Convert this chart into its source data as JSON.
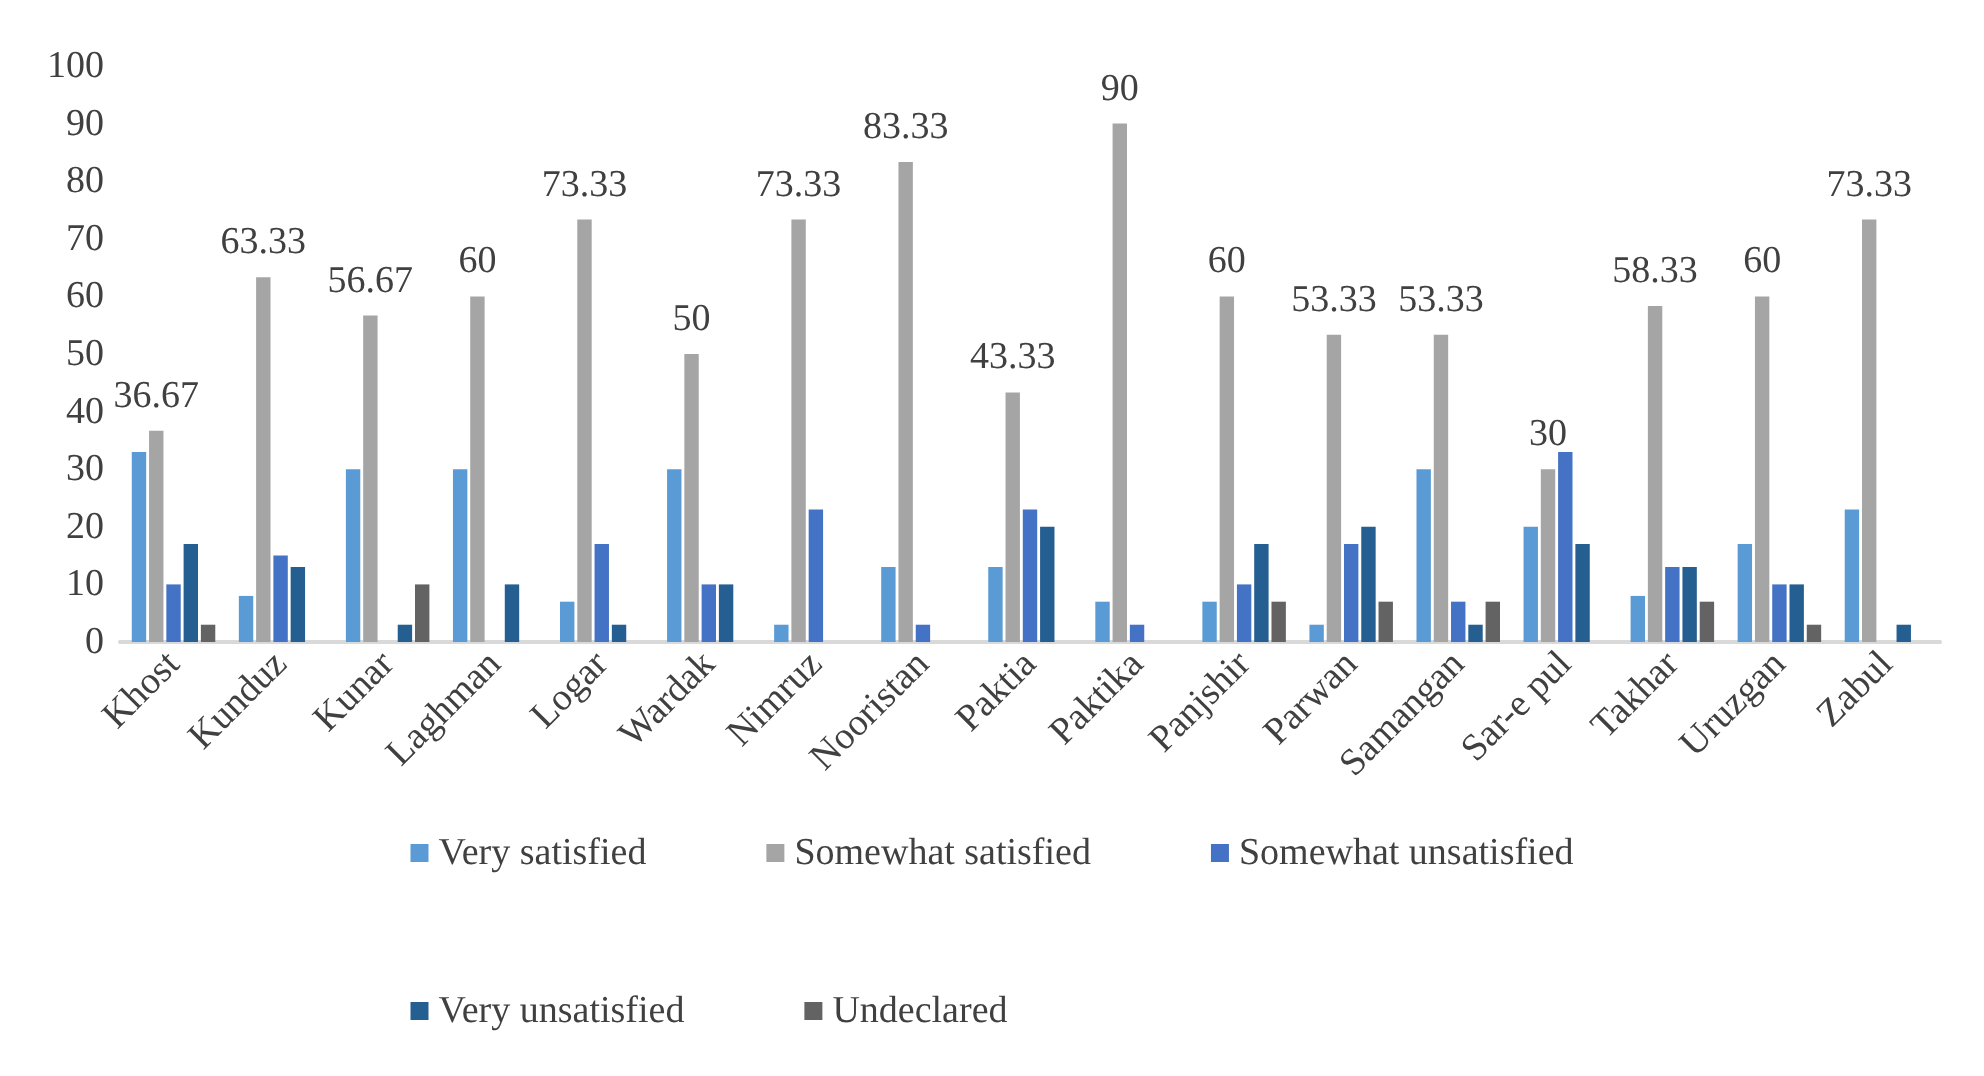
{
  "chart_data": {
    "type": "bar",
    "categories": [
      "Khost",
      "Kunduz",
      "Kunar",
      "Laghman",
      "Logar",
      "Wardak",
      "Nimruz",
      "Nooristan",
      "Paktia",
      "Paktika",
      "Panjshir",
      "Parwan",
      "Samangan",
      "Sar-e pul",
      "Takhar",
      "Uruzgan",
      "Zabul"
    ],
    "series": [
      {
        "name": "Very satisfied",
        "color": "#5b9bd5",
        "values": [
          33,
          8,
          30,
          30,
          7,
          30,
          3,
          13,
          13,
          7,
          7,
          3,
          30,
          20,
          8,
          17,
          23
        ]
      },
      {
        "name": "Somewhat satisfied",
        "color": "#a5a5a5",
        "values": [
          36.67,
          63.33,
          56.67,
          60,
          73.33,
          50,
          73.33,
          83.33,
          43.33,
          90,
          60,
          53.33,
          53.33,
          30,
          58.33,
          60,
          73.33
        ],
        "value_labels": [
          "36.67",
          "63.33",
          "56.67",
          "60",
          "73.33",
          "50",
          "73.33",
          "83.33",
          "43.33",
          "90",
          "60",
          "53.33",
          "53.33",
          "30",
          "58.33",
          "60",
          "73.33"
        ]
      },
      {
        "name": "Somewhat unsatisfied",
        "color": "#4472c4",
        "values": [
          10,
          15,
          0,
          0,
          17,
          10,
          23,
          3,
          23,
          3,
          10,
          17,
          7,
          33,
          13,
          10,
          0
        ]
      },
      {
        "name": "Very unsatisfied",
        "color": "#255e91",
        "values": [
          17,
          13,
          3,
          10,
          3,
          10,
          0,
          0,
          20,
          0,
          17,
          20,
          3,
          17,
          13,
          10,
          3
        ]
      },
      {
        "name": "Undeclared",
        "color": "#636363",
        "values": [
          3,
          0,
          10,
          0,
          0,
          0,
          0,
          0,
          0,
          0,
          7,
          7,
          7,
          0,
          7,
          3,
          0
        ]
      }
    ],
    "ylim": [
      0,
      100
    ],
    "yticks": [
      0,
      10,
      20,
      30,
      40,
      50,
      60,
      70,
      80,
      90,
      100
    ],
    "grid": false,
    "legend": "bottom"
  }
}
